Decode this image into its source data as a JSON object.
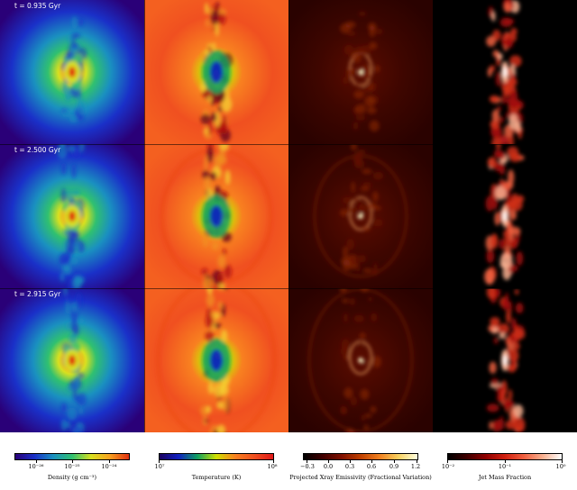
{
  "figure": {
    "time_labels": [
      "t = 0.935 Gyr",
      "t = 2.500 Gyr",
      "t = 2.915 Gyr"
    ],
    "columns": [
      {
        "quantity": "density",
        "colormap": [
          "#2a0078",
          "#1a30c8",
          "#1a90c0",
          "#30c070",
          "#d8e020",
          "#f8a020",
          "#e03010"
        ],
        "colorbar": {
          "label": "Density (g cm⁻³)",
          "ticks": [
            "10⁻²⁶",
            "10⁻²⁵",
            "10⁻²⁴"
          ]
        }
      },
      {
        "quantity": "temperature",
        "colormap": [
          "#1a0060",
          "#1020c0",
          "#10a060",
          "#d0e000",
          "#f88020",
          "#f05020",
          "#e01818"
        ],
        "colorbar": {
          "label": "Temperature (K)",
          "ticks": [
            "10⁷",
            "10⁸"
          ]
        }
      },
      {
        "quantity": "xray",
        "colormap": [
          "#000000",
          "#400000",
          "#801000",
          "#c04000",
          "#f08020",
          "#f8d060",
          "#ffffe0"
        ],
        "colorbar": {
          "label": "Projected Xray Emissivity (Fractional Variation)",
          "ticks": [
            "−0.3",
            "0.0",
            "0.3",
            "0.6",
            "0.9",
            "1.2"
          ]
        }
      },
      {
        "quantity": "jet",
        "colormap": [
          "#000000",
          "#400000",
          "#900000",
          "#d02010",
          "#f06040",
          "#f8b090",
          "#ffffff"
        ],
        "colorbar": {
          "label": "Jet Mass Fraction",
          "ticks": [
            "10⁻²",
            "10⁻¹",
            "10⁰"
          ]
        }
      }
    ]
  }
}
